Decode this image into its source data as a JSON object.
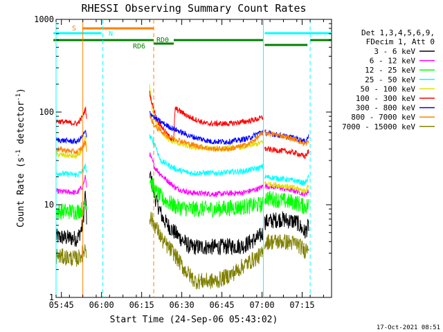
{
  "chart_data": {
    "type": "line",
    "title": "RHESSI Observing Summary Count Rates",
    "xlabel": "Start Time (24-Sep-06 05:43:02)",
    "ylabel_main": "Count Rate (s",
    "ylabel_sup": "-1",
    "ylabel_tail": " detector",
    "ylabel_sup2": "-1",
    "ylabel_end": ")",
    "ylog": true,
    "x_range_min": [
      0,
      103
    ],
    "ylim": [
      1,
      1000
    ],
    "xticks": [
      {
        "t": 2,
        "label": "05:45"
      },
      {
        "t": 17,
        "label": "06:00"
      },
      {
        "t": 32,
        "label": "06:15"
      },
      {
        "t": 47,
        "label": "06:30"
      },
      {
        "t": 62,
        "label": "06:45"
      },
      {
        "t": 77,
        "label": "07:00"
      },
      {
        "t": 92,
        "label": "07:15"
      }
    ],
    "yticks": [
      {
        "v": 1,
        "label": "1"
      },
      {
        "v": 10,
        "label": "10"
      },
      {
        "v": 100,
        "label": "100"
      },
      {
        "v": 1000,
        "label": "1000"
      }
    ],
    "legend_header": [
      "Det 1,3,4,5,6,9,",
      "FDecim 1, Att 0"
    ],
    "series": [
      {
        "name": "3 - 6 keV",
        "color": "#000000",
        "values": [
          [
            0,
            4.5
          ],
          [
            8,
            4.3
          ],
          [
            10,
            6
          ],
          [
            11,
            14
          ],
          [
            11.5,
            5
          ]
        ],
        "seg2": [
          [
            35,
            22
          ],
          [
            37,
            12
          ],
          [
            40,
            7
          ],
          [
            43,
            5.5
          ],
          [
            46,
            4.5
          ],
          [
            50,
            3.5
          ],
          [
            60,
            3.5
          ],
          [
            70,
            3.6
          ],
          [
            76,
            4.5
          ],
          [
            77.5,
            5
          ]
        ],
        "seg3": [
          [
            78,
            6.5
          ],
          [
            84,
            7
          ],
          [
            90,
            6.5
          ],
          [
            93,
            5
          ],
          [
            94.5,
            6
          ]
        ]
      },
      {
        "name": "6 - 12 keV",
        "color": "#ff00ff",
        "values": [
          [
            0,
            14
          ],
          [
            8,
            13.5
          ],
          [
            10,
            16
          ],
          [
            11,
            20
          ],
          [
            11.5,
            15
          ]
        ],
        "seg2": [
          [
            35,
            35
          ],
          [
            37,
            25
          ],
          [
            40,
            20
          ],
          [
            45,
            15
          ],
          [
            50,
            13.5
          ],
          [
            60,
            13
          ],
          [
            70,
            13.5
          ],
          [
            76,
            15
          ],
          [
            77.5,
            16
          ]
        ],
        "seg3": [
          [
            78,
            16
          ],
          [
            85,
            15
          ],
          [
            90,
            14
          ],
          [
            93,
            13
          ],
          [
            94.5,
            14
          ]
        ]
      },
      {
        "name": "12 - 25 keV",
        "color": "#00ff00",
        "values": [
          [
            0,
            8.5
          ],
          [
            8,
            8.5
          ],
          [
            10,
            9
          ],
          [
            11,
            11
          ],
          [
            11.5,
            9
          ]
        ],
        "seg2": [
          [
            35,
            20
          ],
          [
            37,
            14
          ],
          [
            40,
            11.5
          ],
          [
            45,
            9.5
          ],
          [
            50,
            9
          ],
          [
            60,
            9
          ],
          [
            70,
            9.5
          ],
          [
            76,
            10
          ],
          [
            77.5,
            10
          ]
        ],
        "seg3": [
          [
            78,
            12
          ],
          [
            85,
            11
          ],
          [
            90,
            10.5
          ],
          [
            93,
            9.5
          ],
          [
            94.5,
            10
          ]
        ]
      },
      {
        "name": "25 - 50 keV",
        "color": "#00ffff",
        "values": [
          [
            0,
            22
          ],
          [
            8,
            21
          ],
          [
            10,
            23
          ],
          [
            11,
            26
          ],
          [
            11.5,
            22
          ]
        ],
        "seg2": [
          [
            35,
            55
          ],
          [
            37,
            45
          ],
          [
            39,
            30
          ],
          [
            45,
            24
          ],
          [
            50,
            22
          ],
          [
            60,
            22
          ],
          [
            70,
            23
          ],
          [
            76,
            25
          ],
          [
            77.5,
            26
          ]
        ],
        "seg3": [
          [
            78,
            20
          ],
          [
            85,
            19
          ],
          [
            90,
            18
          ],
          [
            93,
            17
          ],
          [
            94.5,
            20
          ]
        ]
      },
      {
        "name": "50 - 100 keV",
        "color": "#e0e000",
        "values": [
          [
            0,
            35
          ],
          [
            8,
            33
          ],
          [
            10,
            40
          ],
          [
            11,
            55
          ],
          [
            11.5,
            38
          ]
        ],
        "seg2": [
          [
            35,
            190
          ],
          [
            36,
            100
          ],
          [
            38,
            70
          ],
          [
            42,
            50
          ],
          [
            50,
            42
          ],
          [
            60,
            40
          ],
          [
            70,
            42
          ],
          [
            76,
            46
          ],
          [
            77.5,
            48
          ]
        ],
        "seg3": [
          [
            78,
            17
          ],
          [
            85,
            16
          ],
          [
            90,
            15
          ],
          [
            93,
            14
          ],
          [
            94.5,
            16
          ]
        ]
      },
      {
        "name": "100 - 300 keV",
        "color": "#ff0000",
        "values": [
          [
            0,
            80
          ],
          [
            8,
            75
          ],
          [
            10,
            90
          ],
          [
            11,
            110
          ],
          [
            11.5,
            80
          ]
        ],
        "seg2": [
          [
            35,
            160
          ],
          [
            36,
            120
          ],
          [
            38,
            80
          ],
          [
            42,
            55
          ],
          [
            44,
            50
          ],
          [
            44.5,
            110
          ],
          [
            50,
            88
          ],
          [
            56,
            75
          ],
          [
            65,
            75
          ],
          [
            72,
            80
          ],
          [
            76,
            85
          ],
          [
            77.5,
            88
          ]
        ],
        "seg3": [
          [
            78,
            40
          ],
          [
            85,
            38
          ],
          [
            90,
            36
          ],
          [
            93,
            33
          ],
          [
            94.5,
            38
          ]
        ]
      },
      {
        "name": "300 - 800 keV",
        "color": "#0000ff",
        "values": [
          [
            0,
            50
          ],
          [
            8,
            48
          ],
          [
            10,
            55
          ],
          [
            11,
            62
          ],
          [
            11.5,
            50
          ]
        ],
        "seg2": [
          [
            35,
            100
          ],
          [
            37,
            85
          ],
          [
            42,
            70
          ],
          [
            50,
            55
          ],
          [
            58,
            48
          ],
          [
            65,
            48
          ],
          [
            72,
            52
          ],
          [
            76,
            60
          ],
          [
            77.5,
            62
          ]
        ],
        "seg3": [
          [
            78,
            60
          ],
          [
            85,
            55
          ],
          [
            90,
            52
          ],
          [
            93,
            48
          ],
          [
            94.5,
            55
          ]
        ]
      },
      {
        "name": "800 - 7000 keV",
        "color": "#ff8000",
        "values": [
          [
            0,
            40
          ],
          [
            8,
            37
          ],
          [
            10,
            42
          ],
          [
            11,
            48
          ],
          [
            11.5,
            38
          ]
        ],
        "seg2": [
          [
            35,
            90
          ],
          [
            37,
            70
          ],
          [
            42,
            55
          ],
          [
            50,
            45
          ],
          [
            58,
            40
          ],
          [
            65,
            40
          ],
          [
            72,
            45
          ],
          [
            76,
            55
          ],
          [
            77.5,
            60
          ]
        ],
        "seg3": [
          [
            78,
            60
          ],
          [
            85,
            55
          ],
          [
            90,
            50
          ],
          [
            93,
            45
          ],
          [
            94.5,
            48
          ]
        ]
      },
      {
        "name": "7000 - 15000 keV",
        "color": "#808000",
        "values": [
          [
            0,
            2.8
          ],
          [
            8,
            2.6
          ],
          [
            10,
            3
          ],
          [
            11,
            3.5
          ],
          [
            11.5,
            2.8
          ]
        ],
        "seg2": [
          [
            35,
            7.5
          ],
          [
            37,
            6
          ],
          [
            40,
            4
          ],
          [
            44,
            3
          ],
          [
            48,
            2
          ],
          [
            52,
            1.5
          ],
          [
            60,
            1.5
          ],
          [
            66,
            1.8
          ],
          [
            70,
            2.2
          ],
          [
            76,
            2.8
          ],
          [
            77.5,
            3
          ]
        ],
        "seg3": [
          [
            78,
            4
          ],
          [
            85,
            4
          ],
          [
            90,
            3.8
          ],
          [
            93,
            3.2
          ],
          [
            94.5,
            3.8
          ]
        ]
      }
    ],
    "flags": {
      "s_label": "S",
      "n_label": "N",
      "rd0_label": "RD0",
      "rd6_label": "RD6"
    },
    "footer_timestamp": "17-Oct-2021 08:51"
  }
}
